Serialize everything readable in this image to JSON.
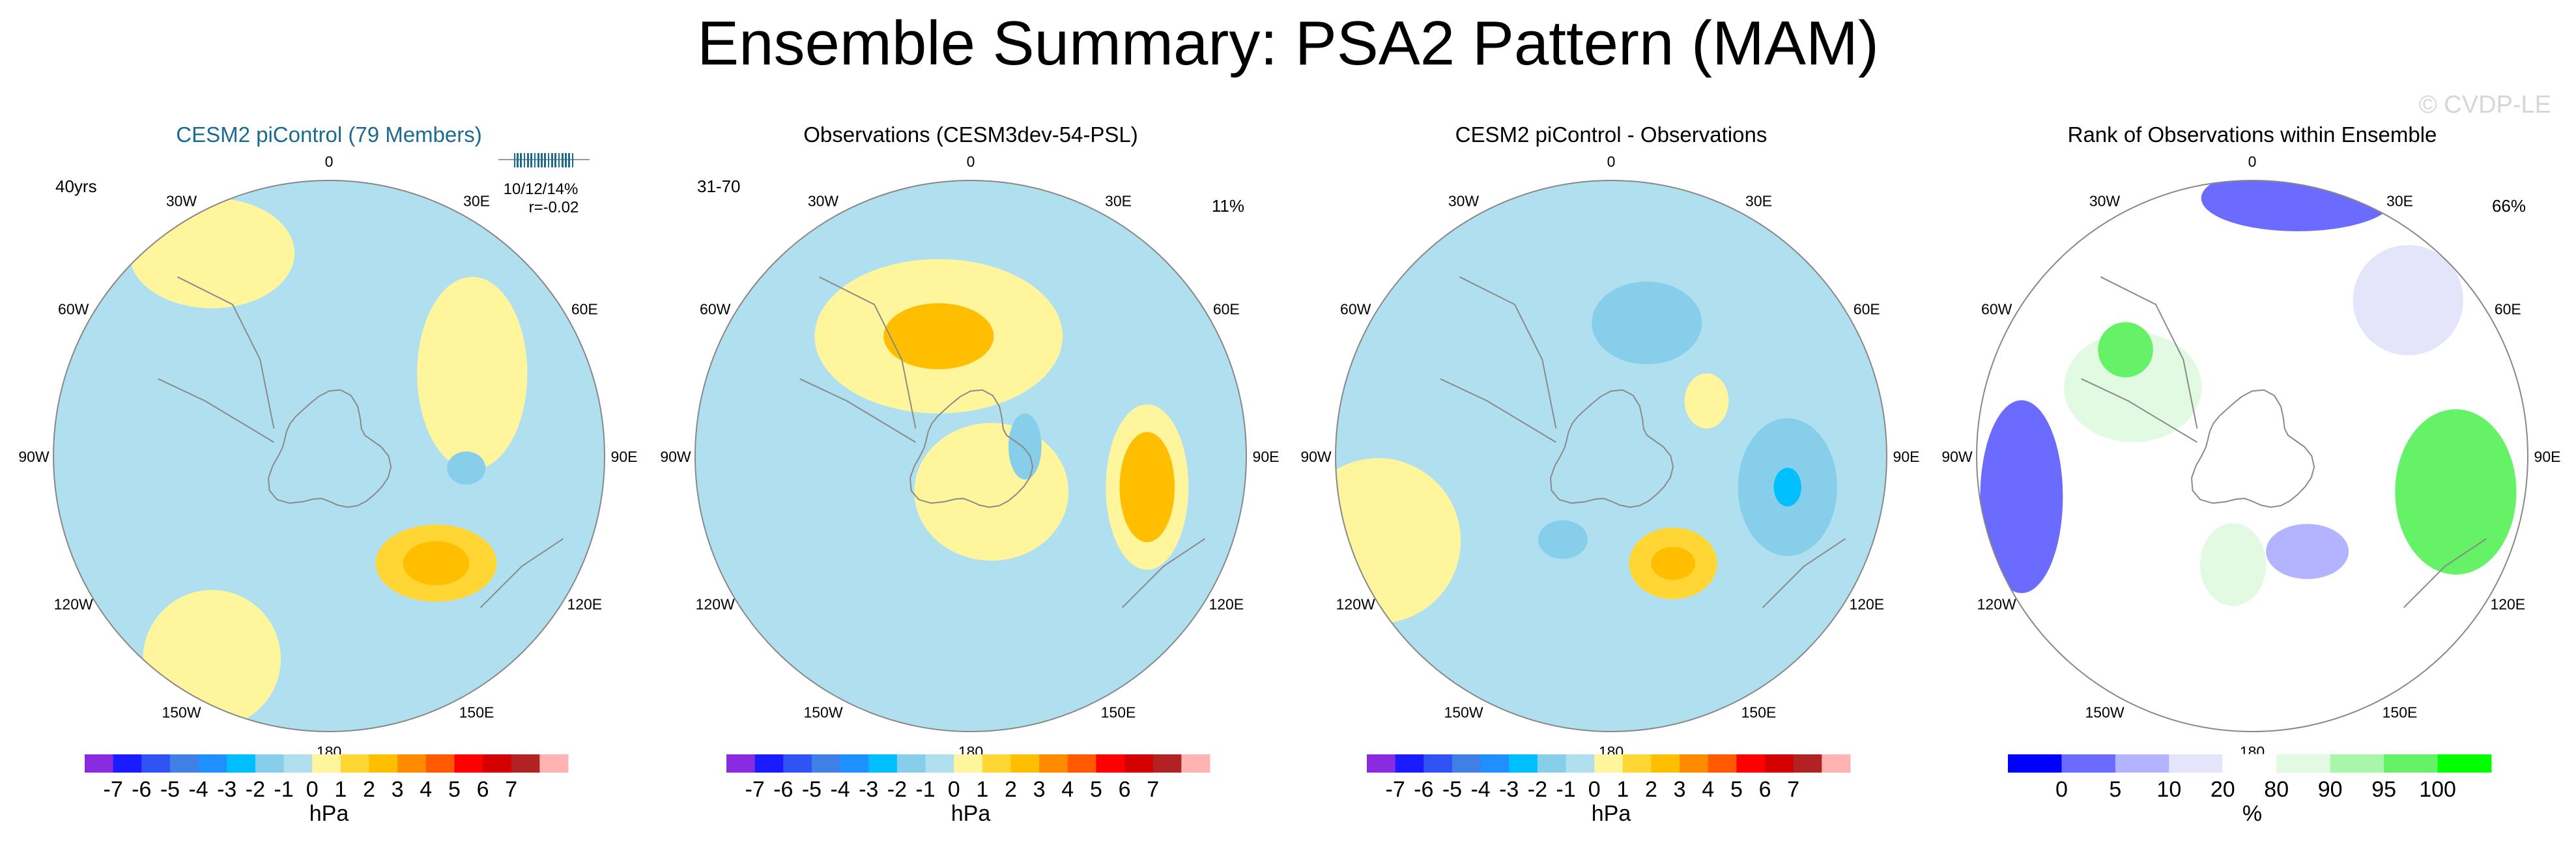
{
  "title": "Ensemble Summary: PSA2 Pattern (MAM)",
  "watermark": "© CVDP-LE",
  "colors": {
    "diverging": [
      "#8a2be2",
      "#1b1bff",
      "#2f53f5",
      "#3f7fe6",
      "#1e90ff",
      "#00bfff",
      "#87ceeb",
      "#b0e0f0",
      "#fff59d",
      "#ffd633",
      "#ffbf00",
      "#ff8c00",
      "#ff5a00",
      "#ff0000",
      "#d40000",
      "#b22222",
      "#ffb3b3"
    ],
    "rank": [
      "#0000ff",
      "#6b6bff",
      "#b3b3ff",
      "#e4e4fa",
      "#ffffff",
      "#e1fae1",
      "#a9f5a9",
      "#66f266",
      "#00ff00"
    ],
    "title_blue": "#1a6b8f",
    "coast": "#8a8a8a"
  },
  "panels": [
    {
      "title": "CESM2 piControl (79 Members)",
      "left_note": "40yrs",
      "right_note": "",
      "stats": [
        "10/12/14%",
        "r=-0.02"
      ],
      "colorbar": "diverging",
      "colorbar_label": "hPa",
      "fields": [
        {
          "lon": 135,
          "r": 0.55,
          "rx": 0.22,
          "ry": 0.14,
          "value": 1.5
        },
        {
          "lon": 135,
          "r": 0.55,
          "rx": 0.12,
          "ry": 0.08,
          "value": 2.4
        },
        {
          "lon": 60,
          "r": 0.6,
          "rx": 0.2,
          "ry": 0.35,
          "value": 0.8
        },
        {
          "lon": 330,
          "r": 0.85,
          "rx": 0.3,
          "ry": 0.2,
          "value": 0.8
        },
        {
          "lon": 95,
          "r": 0.5,
          "rx": 0.07,
          "ry": 0.06,
          "value": -1.4
        },
        {
          "lon": 210,
          "r": 0.85,
          "rx": 0.25,
          "ry": 0.25,
          "value": 0.6
        }
      ]
    },
    {
      "title": "Observations (CESM3dev-54-PSL)",
      "left_note": "31-70",
      "right_note": "11%",
      "stats": [],
      "colorbar": "diverging",
      "colorbar_label": "hPa",
      "fields": [
        {
          "lon": 345,
          "r": 0.45,
          "rx": 0.45,
          "ry": 0.28,
          "value": 0.8
        },
        {
          "lon": 345,
          "r": 0.45,
          "rx": 0.2,
          "ry": 0.12,
          "value": 2.2
        },
        {
          "lon": 100,
          "r": 0.65,
          "rx": 0.15,
          "ry": 0.3,
          "value": 0.8
        },
        {
          "lon": 100,
          "r": 0.65,
          "rx": 0.1,
          "ry": 0.2,
          "value": 2.2
        },
        {
          "lon": 150,
          "r": 0.15,
          "rx": 0.28,
          "ry": 0.25,
          "value": 0.8
        },
        {
          "lon": 260,
          "r": 0.3,
          "rx": 0.06,
          "ry": 0.06,
          "value": -0.5
        },
        {
          "lon": 80,
          "r": 0.2,
          "rx": 0.06,
          "ry": 0.12,
          "value": -1.3
        }
      ]
    },
    {
      "title": "CESM2 piControl - Observations",
      "left_note": "",
      "right_note": "",
      "stats": [],
      "colorbar": "diverging",
      "colorbar_label": "hPa",
      "fields": [
        {
          "lon": 100,
          "r": 0.65,
          "rx": 0.18,
          "ry": 0.25,
          "value": -1.4
        },
        {
          "lon": 100,
          "r": 0.65,
          "rx": 0.05,
          "ry": 0.07,
          "value": -2.4
        },
        {
          "lon": 15,
          "r": 0.5,
          "rx": 0.2,
          "ry": 0.15,
          "value": -1.4
        },
        {
          "lon": 150,
          "r": 0.45,
          "rx": 0.16,
          "ry": 0.13,
          "value": 1.5
        },
        {
          "lon": 150,
          "r": 0.45,
          "rx": 0.08,
          "ry": 0.06,
          "value": 2.6
        },
        {
          "lon": 210,
          "r": 0.35,
          "rx": 0.09,
          "ry": 0.07,
          "value": -1.4
        },
        {
          "lon": 60,
          "r": 0.4,
          "rx": 0.08,
          "ry": 0.1,
          "value": 0.6
        },
        {
          "lon": 250,
          "r": 0.9,
          "rx": 0.3,
          "ry": 0.3,
          "value": 0.6
        }
      ]
    },
    {
      "title": "Rank of Observations within Ensemble",
      "left_note": "",
      "right_note": "66%",
      "stats": [],
      "colorbar": "rank",
      "colorbar_label": "%",
      "fields": [
        {
          "lon": 100,
          "r": 0.75,
          "rx": 0.22,
          "ry": 0.3,
          "value": 99
        },
        {
          "lon": 10,
          "r": 0.95,
          "rx": 0.35,
          "ry": 0.12,
          "value": 1
        },
        {
          "lon": 260,
          "r": 0.85,
          "rx": 0.15,
          "ry": 0.35,
          "value": 3
        },
        {
          "lon": 300,
          "r": 0.5,
          "rx": 0.25,
          "ry": 0.2,
          "value": 85
        },
        {
          "lon": 310,
          "r": 0.6,
          "rx": 0.1,
          "ry": 0.1,
          "value": 98
        },
        {
          "lon": 150,
          "r": 0.4,
          "rx": 0.15,
          "ry": 0.1,
          "value": 8
        },
        {
          "lon": 190,
          "r": 0.4,
          "rx": 0.12,
          "ry": 0.15,
          "value": 85
        },
        {
          "lon": 45,
          "r": 0.8,
          "rx": 0.2,
          "ry": 0.2,
          "value": 10
        }
      ]
    }
  ],
  "diverging_colorbar": {
    "labels": [
      "-7",
      "-6",
      "-5",
      "-4",
      "-3",
      "-2",
      "-1",
      "0",
      "1",
      "2",
      "3",
      "4",
      "5",
      "6",
      "7"
    ]
  },
  "rank_colorbar": {
    "labels": [
      "0",
      "5",
      "10",
      "20",
      "80",
      "90",
      "95",
      "100"
    ]
  },
  "lon_labels": [
    "0",
    "30E",
    "60E",
    "90E",
    "120E",
    "150E",
    "180",
    "150W",
    "120W",
    "90W",
    "60W",
    "30W"
  ],
  "chart_data": [
    {
      "type": "heatmap",
      "title": "CESM2 piControl (79 Members)",
      "projection": "south polar stereographic",
      "units": "hPa",
      "contour_levels": [
        -7,
        -6,
        -5,
        -4,
        -3,
        -2,
        -1,
        0,
        1,
        2,
        3,
        4,
        5,
        6,
        7
      ],
      "annotations": [
        "40yrs",
        "10/12/14%",
        "r=-0.02"
      ]
    },
    {
      "type": "heatmap",
      "title": "Observations (CESM3dev-54-PSL)",
      "projection": "south polar stereographic",
      "units": "hPa",
      "contour_levels": [
        -7,
        -6,
        -5,
        -4,
        -3,
        -2,
        -1,
        0,
        1,
        2,
        3,
        4,
        5,
        6,
        7
      ],
      "annotations": [
        "31-70",
        "11%"
      ]
    },
    {
      "type": "heatmap",
      "title": "CESM2 piControl - Observations",
      "projection": "south polar stereographic",
      "units": "hPa",
      "contour_levels": [
        -7,
        -6,
        -5,
        -4,
        -3,
        -2,
        -1,
        0,
        1,
        2,
        3,
        4,
        5,
        6,
        7
      ],
      "annotations": []
    },
    {
      "type": "heatmap",
      "title": "Rank of Observations within Ensemble",
      "projection": "south polar stereographic",
      "units": "%",
      "contour_levels": [
        0,
        5,
        10,
        20,
        80,
        90,
        95,
        100
      ],
      "annotations": [
        "66%"
      ]
    }
  ]
}
